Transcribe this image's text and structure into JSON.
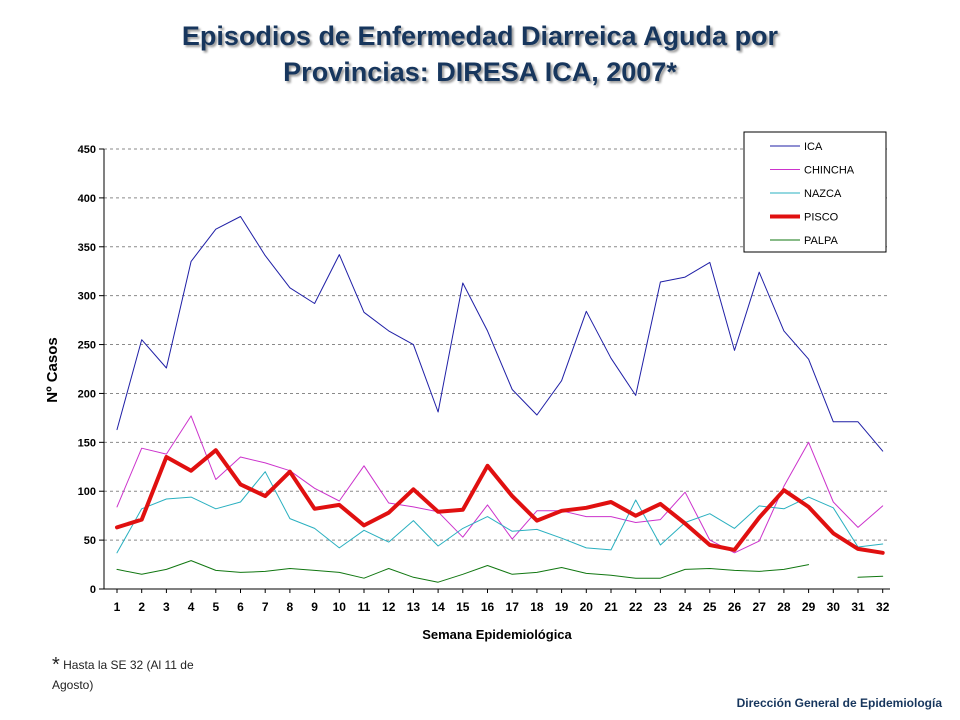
{
  "title_line1": "Episodios de Enfermedad Diarreica Aguda por",
  "title_line2": "Provincias: DIRESA ICA, 2007*",
  "footnote": {
    "star": "*",
    "text": "Hasta la SE 32 (Al 11 de Agosto)"
  },
  "footer": "Dirección General de Epidemiología",
  "chart_data": {
    "type": "line",
    "title": "Episodios de Enfermedad Diarreica Aguda por Provincias: DIRESA ICA, 2007*",
    "xlabel": "Semana Epidemiológica",
    "ylabel": "Nº Casos",
    "ylim": [
      0,
      450
    ],
    "yticks": [
      0,
      50,
      100,
      150,
      200,
      250,
      300,
      350,
      400,
      450
    ],
    "grid": "horizontal dashed",
    "legend_position": "top-right",
    "categories": [
      "1",
      "2",
      "3",
      "4",
      "5",
      "6",
      "7",
      "8",
      "9",
      "10",
      "11",
      "12",
      "13",
      "14",
      "15",
      "16",
      "17",
      "18",
      "19",
      "20",
      "21",
      "22",
      "23",
      "24",
      "25",
      "26",
      "27",
      "28",
      "29",
      "30",
      "31",
      "32"
    ],
    "series": [
      {
        "name": "ICA",
        "color": "#1f1fa6",
        "width": 1,
        "values": [
          163,
          255,
          226,
          335,
          368,
          381,
          341,
          308,
          292,
          342,
          283,
          264,
          250,
          181,
          313,
          264,
          204,
          178,
          213,
          284,
          236,
          198,
          314,
          319,
          334,
          244,
          324,
          264,
          235,
          171,
          171,
          141
        ]
      },
      {
        "name": "CHINCHA",
        "color": "#cc33cc",
        "width": 1,
        "values": [
          84,
          144,
          138,
          177,
          112,
          135,
          129,
          121,
          103,
          90,
          126,
          88,
          84,
          79,
          53,
          86,
          51,
          80,
          80,
          74,
          74,
          68,
          71,
          99,
          50,
          37,
          49,
          105,
          150,
          89,
          63,
          85
        ]
      },
      {
        "name": "NAZCA",
        "color": "#2ab0c0",
        "width": 1,
        "values": [
          37,
          82,
          92,
          94,
          82,
          89,
          120,
          72,
          62,
          42,
          60,
          48,
          70,
          44,
          62,
          74,
          59,
          61,
          52,
          42,
          40,
          91,
          45,
          68,
          77,
          62,
          85,
          82,
          94,
          83,
          43,
          46
        ]
      },
      {
        "name": "PISCO",
        "color": "#e01010",
        "width": 4,
        "values": [
          63,
          71,
          135,
          121,
          142,
          107,
          95,
          120,
          82,
          86,
          65,
          78,
          102,
          79,
          81,
          126,
          95,
          70,
          80,
          83,
          89,
          75,
          87,
          67,
          45,
          40,
          73,
          101,
          84,
          57,
          41,
          37
        ]
      },
      {
        "name": "PALPA",
        "color": "#117711",
        "width": 1,
        "values": [
          20,
          15,
          20,
          29,
          19,
          17,
          18,
          21,
          19,
          17,
          11,
          21,
          12,
          7,
          15,
          24,
          15,
          17,
          22,
          16,
          14,
          11,
          11,
          20,
          21,
          19,
          18,
          20,
          25,
          null,
          12,
          13
        ]
      }
    ]
  }
}
